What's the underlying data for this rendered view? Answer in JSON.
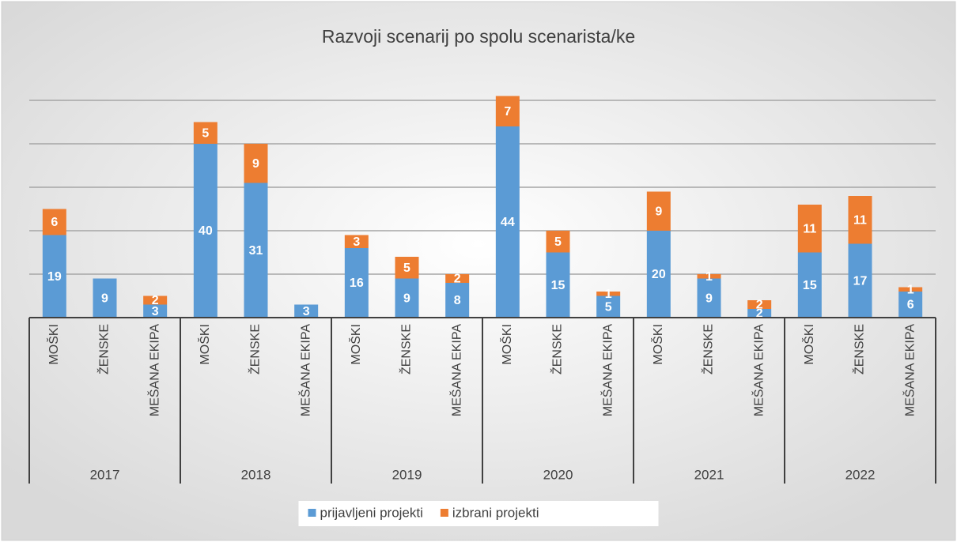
{
  "chart_data": {
    "type": "stacked_bar",
    "title": "Razvoji scenarij po spolu scenarista/ke",
    "groups": [
      "2017",
      "2018",
      "2019",
      "2020",
      "2021",
      "2022"
    ],
    "categories": [
      "MOŠKI",
      "ŽENSKE",
      "MEŠANA EKIPA",
      "MOŠKI",
      "ŽENSKE",
      "MEŠANA EKIPA",
      "MOŠKI",
      "ŽENSKE",
      "MEŠANA EKIPA",
      "MOŠKI",
      "ŽENSKE",
      "MEŠANA EKIPA",
      "MOŠKI",
      "ŽENSKE",
      "MEŠANA EKIPA",
      "MOŠKI",
      "ŽENSKE",
      "MEŠANA EKIPA"
    ],
    "series": [
      {
        "name": "prijavljeni projekti",
        "color": "#5b9bd5",
        "values": [
          19,
          9,
          3,
          40,
          31,
          3,
          16,
          9,
          8,
          44,
          15,
          5,
          20,
          9,
          2,
          15,
          17,
          6
        ]
      },
      {
        "name": "izbrani projekti",
        "color": "#ed7d31",
        "values": [
          6,
          null,
          2,
          5,
          9,
          null,
          3,
          5,
          2,
          7,
          5,
          1,
          9,
          1,
          2,
          11,
          11,
          1
        ]
      }
    ],
    "ylim": [
      0,
      60
    ],
    "yticks": [
      10,
      20,
      30,
      40,
      50
    ],
    "grid": true,
    "legend": "bottom"
  }
}
